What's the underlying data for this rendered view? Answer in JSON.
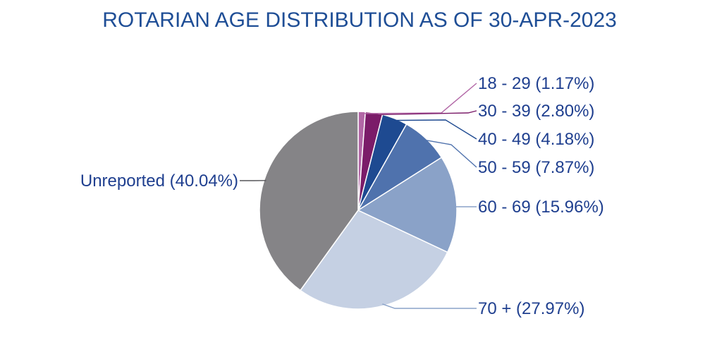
{
  "chart_data": {
    "type": "pie",
    "title": "ROTARIAN AGE DISTRIBUTION AS OF 30-APR-2023",
    "slices": [
      {
        "label": "18 - 29 (1.17%)",
        "value": 1.17,
        "color": "#b267a6"
      },
      {
        "label": "30 - 39 (2.80%)",
        "value": 2.8,
        "color": "#7b1c69"
      },
      {
        "label": "40 - 49 (4.18%)",
        "value": 4.18,
        "color": "#1e4a91"
      },
      {
        "label": "50 - 59 (7.87%)",
        "value": 7.87,
        "color": "#4f72ad"
      },
      {
        "label": "60 - 69 (15.96%)",
        "value": 15.96,
        "color": "#8aa2c8"
      },
      {
        "label": "70 + (27.97%)",
        "value": 27.97,
        "color": "#c5d0e3"
      },
      {
        "label": "Unreported (40.04%)",
        "value": 40.04,
        "color": "#858487"
      }
    ],
    "legend": "none",
    "label_placement": "outside-with-leader-lines"
  }
}
